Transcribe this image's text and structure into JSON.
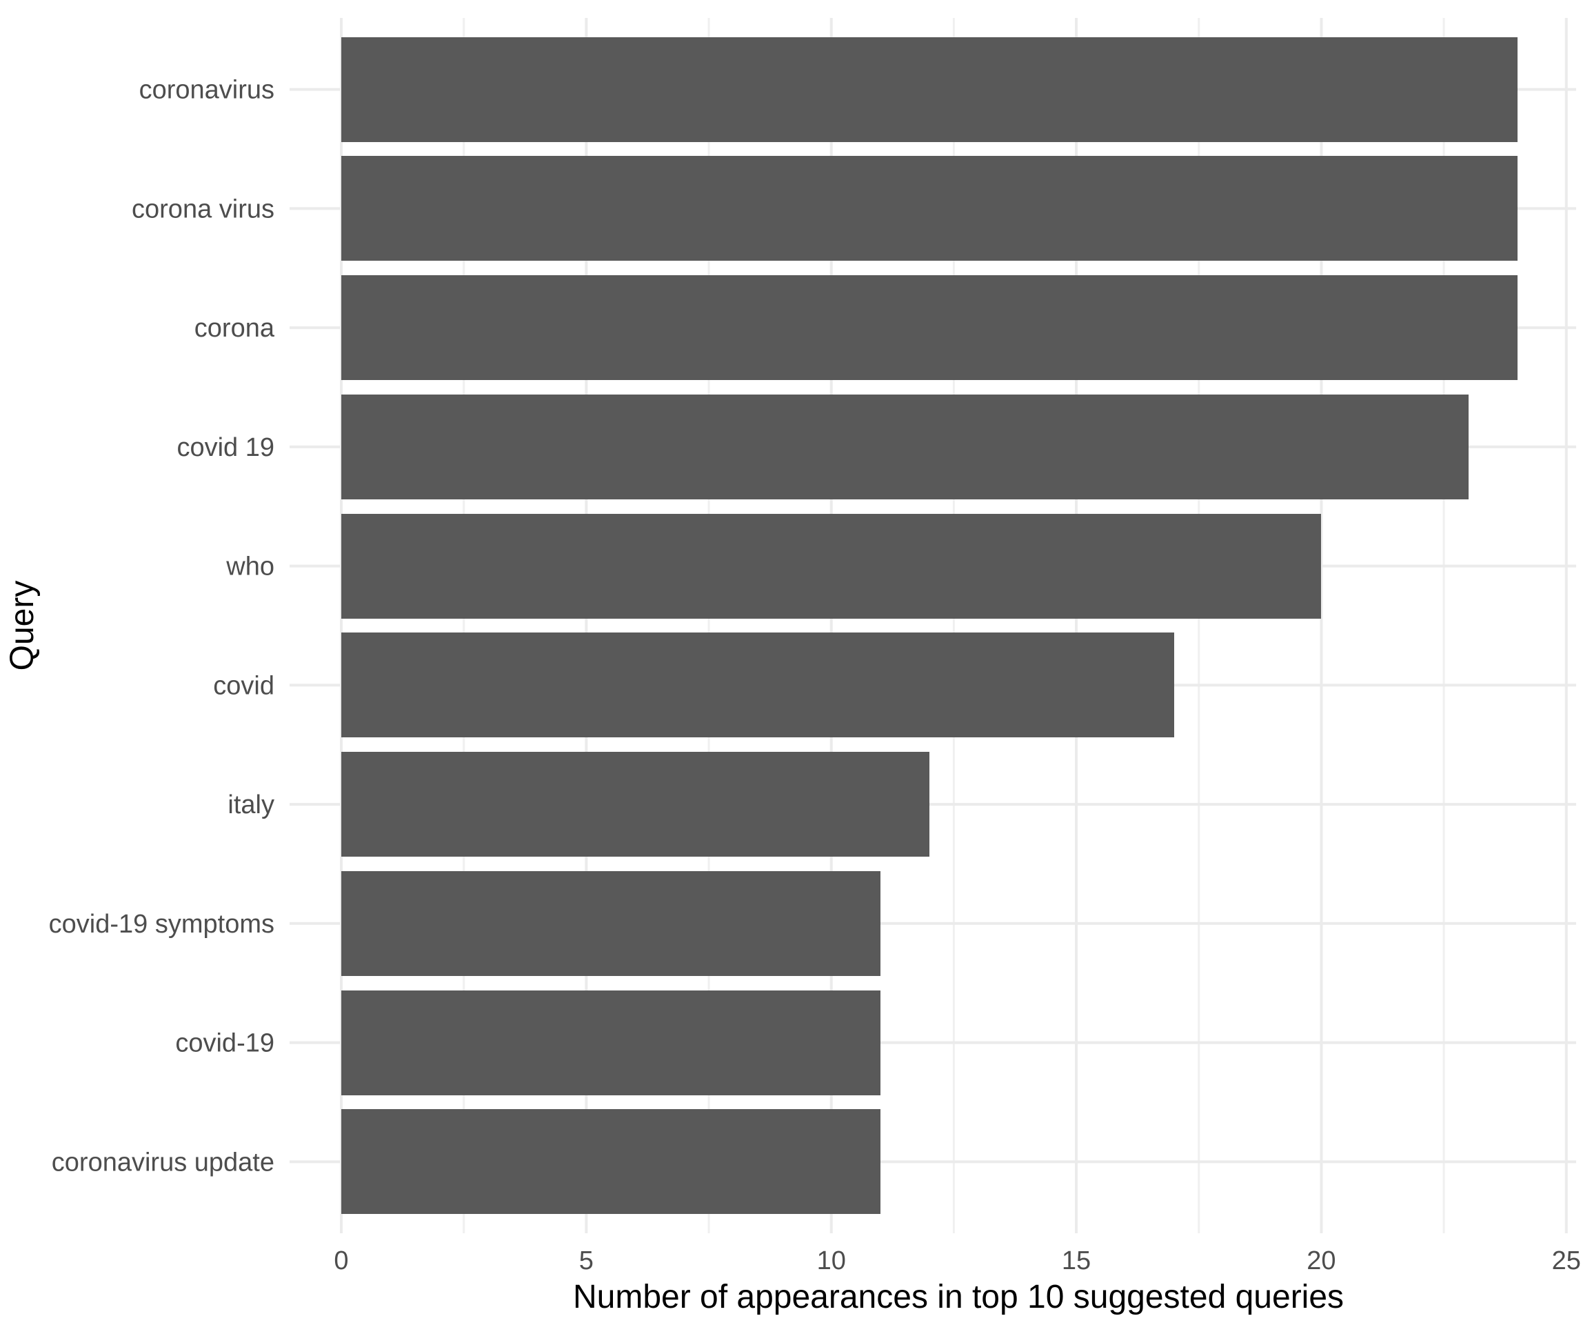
{
  "chart_data": {
    "type": "bar",
    "orientation": "horizontal",
    "title": "",
    "xlabel": "Number of appearances in top 10 suggested queries",
    "ylabel": "Query",
    "categories": [
      "coronavirus",
      "corona virus",
      "corona",
      "covid 19",
      "who",
      "covid",
      "italy",
      "covid-19 symptoms",
      "covid-19",
      "coronavirus update"
    ],
    "values": [
      24,
      24,
      24,
      23,
      20,
      17,
      12,
      11,
      11,
      11
    ],
    "x_ticks": [
      0,
      5,
      10,
      15,
      20,
      25
    ],
    "x_minor_ticks": [
      2.5,
      7.5,
      12.5,
      17.5,
      22.5
    ],
    "xlim": [
      0,
      25.2
    ],
    "grid": true,
    "legend": false,
    "colors": {
      "bar_fill": "#595959",
      "grid_major": "#EBEBEB",
      "grid_minor": "#F0F0F0",
      "tick_label": "#4D4D4D",
      "axis_title": "#000000",
      "background": "#FFFFFF"
    }
  }
}
